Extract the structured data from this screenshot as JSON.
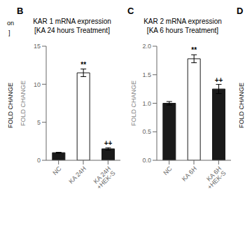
{
  "chart_data": [
    {
      "type": "bar",
      "panel_label": "B",
      "title": "KAR 1 mRNA expression\n[KA 24 hours Treatment]",
      "categories": [
        "NC",
        "KA 24H",
        "KA 24H +HEK-S"
      ],
      "values": [
        1.0,
        11.5,
        1.5
      ],
      "errors": [
        0.05,
        0.5,
        0.15
      ],
      "colors": [
        "#1a1a1a",
        "#ffffff",
        "#1a1a1a"
      ],
      "edge_color": "#1a1a1a",
      "ylabel": "FOLD CHANGE",
      "ylim": [
        0,
        15
      ],
      "yticks": [
        0,
        5,
        10,
        15
      ],
      "annotations": [
        null,
        "**",
        "++"
      ],
      "grid": false
    },
    {
      "type": "bar",
      "panel_label": "C",
      "title": "KAR 2 mRNA expression\n[KA 6 hours Treatment]",
      "categories": [
        "NC",
        "KA 6H",
        "KA 6H +HEK-S"
      ],
      "values": [
        1.0,
        1.78,
        1.25
      ],
      "errors": [
        0.03,
        0.07,
        0.08
      ],
      "colors": [
        "#1a1a1a",
        "#ffffff",
        "#1a1a1a"
      ],
      "edge_color": "#1a1a1a",
      "ylabel": "FOLD CHANGE",
      "ylim": [
        0.0,
        2.0
      ],
      "yticks": [
        {
          "value": 0,
          "label": "0.0"
        },
        0.5,
        {
          "value": 1,
          "label": "1.0"
        },
        1.5,
        {
          "value": 2,
          "label": "2.0"
        }
      ],
      "annotations": [
        null,
        "**",
        "++"
      ],
      "grid": false
    }
  ],
  "left_stub": [
    "on",
    "]",
    "FOLD CHANGE"
  ],
  "right_stub": {
    "panel_label": "D",
    "text": "FOLD CHANGE"
  }
}
